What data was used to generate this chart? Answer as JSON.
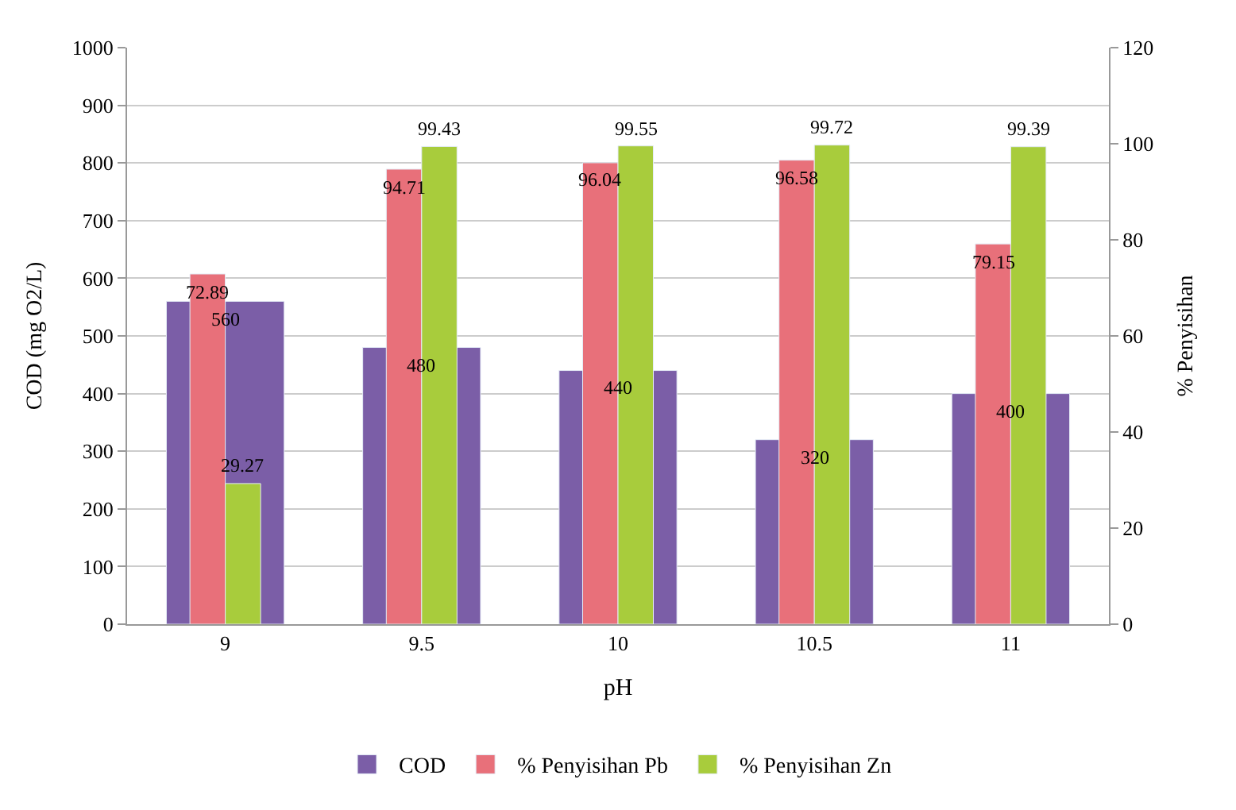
{
  "chart_data": {
    "type": "bar",
    "xlabel": "pH",
    "ylabel": "COD (mg O2/L)",
    "y2label": "% Penyisihan",
    "categories": [
      "9",
      "9.5",
      "10",
      "10.5",
      "11"
    ],
    "series": [
      {
        "name": "COD",
        "color": "#7b5ea7",
        "values": [
          560,
          480,
          440,
          320,
          400
        ]
      },
      {
        "name": "% Penyisihan Pb",
        "color": "#e8707a",
        "values": [
          72.89,
          94.71,
          96.04,
          96.58,
          79.15
        ],
        "axis": "y2"
      },
      {
        "name": "% Penyisihan Zn",
        "color": "#a8cc3c",
        "values": [
          29.27,
          99.43,
          99.55,
          99.72,
          99.39
        ],
        "axis": "y2"
      }
    ],
    "ylim": [
      0,
      1000
    ],
    "yticks": [
      0,
      100,
      200,
      300,
      400,
      500,
      600,
      700,
      800,
      900,
      1000
    ],
    "y2lim": [
      0,
      120
    ],
    "y2ticks": [
      0,
      20,
      40,
      60,
      80,
      100,
      120
    ],
    "data_labels": true,
    "grid": "y",
    "legend": "bottom"
  }
}
